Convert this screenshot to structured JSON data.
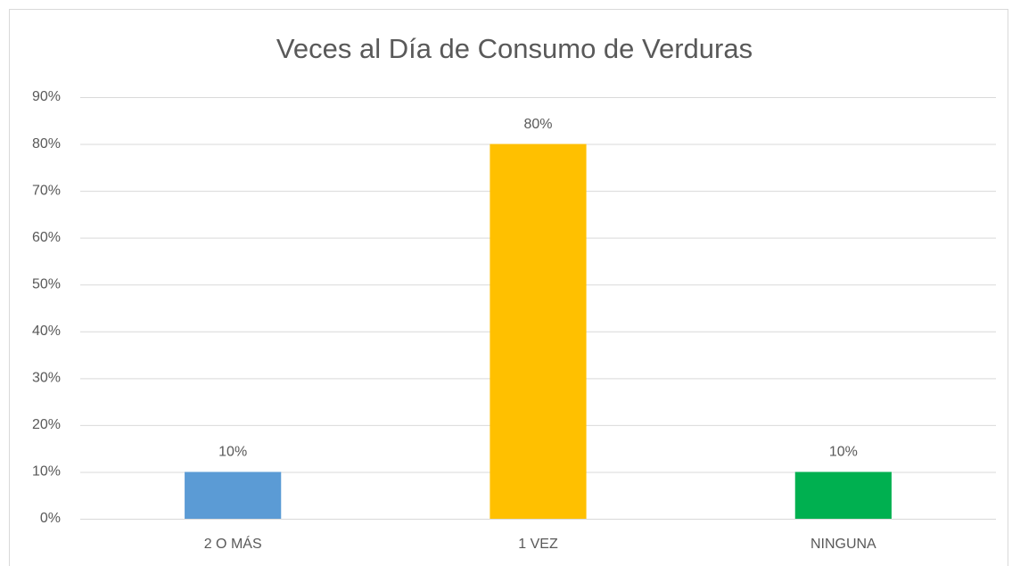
{
  "chart_data": {
    "type": "bar",
    "title": "Veces al Día de Consumo de Verduras",
    "categories": [
      "2 O MÁS",
      "1 VEZ",
      "NINGUNA"
    ],
    "values": [
      10,
      80,
      10
    ],
    "value_labels": [
      "10%",
      "80%",
      "10%"
    ],
    "colors": [
      "#5b9bd5",
      "#ffc000",
      "#00b050"
    ],
    "ylim": [
      0,
      90
    ],
    "yticks": [
      {
        "value": 0,
        "label": "0%"
      },
      {
        "value": 10,
        "label": "10%"
      },
      {
        "value": 20,
        "label": "20%"
      },
      {
        "value": 30,
        "label": "30%"
      },
      {
        "value": 40,
        "label": "40%"
      },
      {
        "value": 50,
        "label": "50%"
      },
      {
        "value": 60,
        "label": "60%"
      },
      {
        "value": 70,
        "label": "70%"
      },
      {
        "value": 80,
        "label": "80%"
      },
      {
        "value": 90,
        "label": "90%"
      }
    ],
    "grid": true
  }
}
